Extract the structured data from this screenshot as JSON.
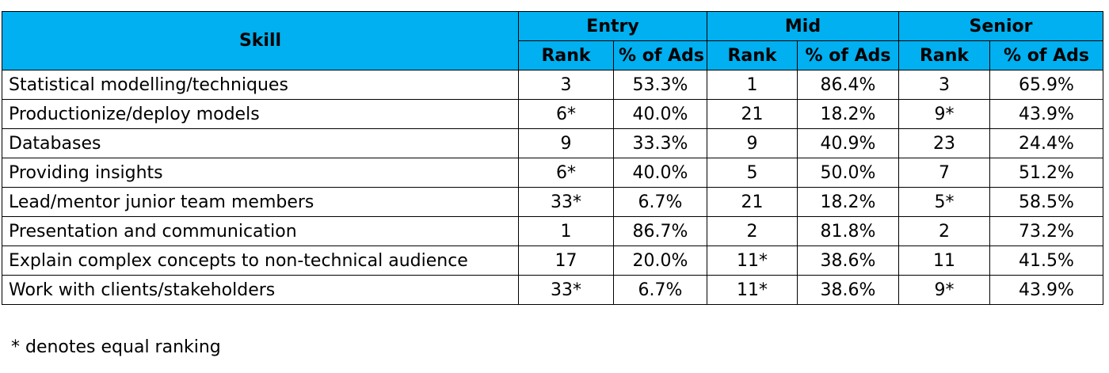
{
  "table": {
    "skill_header": "Skill",
    "groups": [
      "Entry",
      "Mid",
      "Senior"
    ],
    "subheaders": {
      "rank": "Rank",
      "percent": "% of Ads"
    },
    "rows": [
      {
        "skill": "Statistical modelling/techniques",
        "entry_rank": "3",
        "entry_pct": "53.3%",
        "mid_rank": "1",
        "mid_pct": "86.4%",
        "senior_rank": "3",
        "senior_pct": "65.9%"
      },
      {
        "skill": "Productionize/deploy models",
        "entry_rank": "6*",
        "entry_pct": "40.0%",
        "mid_rank": "21",
        "mid_pct": "18.2%",
        "senior_rank": "9*",
        "senior_pct": "43.9%"
      },
      {
        "skill": "Databases",
        "entry_rank": "9",
        "entry_pct": "33.3%",
        "mid_rank": "9",
        "mid_pct": "40.9%",
        "senior_rank": "23",
        "senior_pct": "24.4%"
      },
      {
        "skill": "Providing insights",
        "entry_rank": "6*",
        "entry_pct": "40.0%",
        "mid_rank": "5",
        "mid_pct": "50.0%",
        "senior_rank": "7",
        "senior_pct": "51.2%"
      },
      {
        "skill": "Lead/mentor junior team members",
        "entry_rank": "33*",
        "entry_pct": "6.7%",
        "mid_rank": "21",
        "mid_pct": "18.2%",
        "senior_rank": "5*",
        "senior_pct": "58.5%"
      },
      {
        "skill": "Presentation and communication",
        "entry_rank": "1",
        "entry_pct": "86.7%",
        "mid_rank": "2",
        "mid_pct": "81.8%",
        "senior_rank": "2",
        "senior_pct": "73.2%"
      },
      {
        "skill": "Explain complex concepts to non-technical audience",
        "entry_rank": "17",
        "entry_pct": "20.0%",
        "mid_rank": "11*",
        "mid_pct": "38.6%",
        "senior_rank": "11",
        "senior_pct": "41.5%"
      },
      {
        "skill": "Work with clients/stakeholders",
        "entry_rank": "33*",
        "entry_pct": "6.7%",
        "mid_rank": "11*",
        "mid_pct": "38.6%",
        "senior_rank": "9*",
        "senior_pct": "43.9%"
      }
    ]
  },
  "footnote": "* denotes equal ranking",
  "colors": {
    "header_fill": "#00b0f0",
    "border": "#000000"
  }
}
